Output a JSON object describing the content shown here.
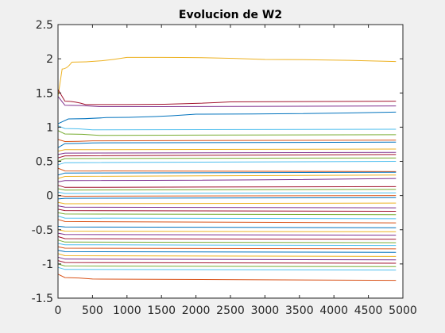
{
  "chart_data": {
    "type": "line",
    "title": "Evolucion de W2",
    "xlabel": "",
    "ylabel": "",
    "xlim": [
      0,
      5000
    ],
    "ylim": [
      -1.5,
      2.5
    ],
    "x_ticks": [
      0,
      500,
      1000,
      1500,
      2000,
      2500,
      3000,
      3500,
      4000,
      4500,
      5000
    ],
    "y_ticks": [
      -1.5,
      -1,
      -0.5,
      0,
      0.5,
      1,
      1.5,
      2,
      2.5
    ],
    "grid": false,
    "legend": "none",
    "x_end": 4900,
    "series": [
      {
        "color": "#EDB120",
        "start": 1.45,
        "values": [
          [
            0,
            1.45
          ],
          [
            60,
            1.85
          ],
          [
            200,
            1.95
          ],
          [
            1000,
            2.02
          ],
          [
            1500,
            2.02
          ],
          [
            3000,
            1.99
          ],
          [
            4900,
            1.96
          ]
        ]
      },
      {
        "color": "#A2142F",
        "start": 1.55,
        "values": [
          [
            0,
            1.55
          ],
          [
            100,
            1.38
          ],
          [
            400,
            1.33
          ],
          [
            1000,
            1.33
          ],
          [
            2500,
            1.37
          ],
          [
            4900,
            1.38
          ]
        ]
      },
      {
        "color": "#7E2F8E",
        "start": 1.45,
        "values": [
          [
            0,
            1.45
          ],
          [
            100,
            1.32
          ],
          [
            600,
            1.3
          ],
          [
            1500,
            1.3
          ],
          [
            4900,
            1.31
          ]
        ]
      },
      {
        "color": "#0072BD",
        "start": 1.05,
        "values": [
          [
            0,
            1.05
          ],
          [
            150,
            1.12
          ],
          [
            700,
            1.14
          ],
          [
            2000,
            1.19
          ],
          [
            4900,
            1.22
          ]
        ]
      },
      {
        "color": "#4DBEEE",
        "start": 1.02,
        "values": [
          [
            0,
            1.02
          ],
          [
            100,
            0.98
          ],
          [
            500,
            0.96
          ],
          [
            4900,
            0.97
          ]
        ]
      },
      {
        "color": "#77AC30",
        "start": 0.95,
        "values": [
          [
            0,
            0.95
          ],
          [
            100,
            0.9
          ],
          [
            600,
            0.88
          ],
          [
            4900,
            0.89
          ]
        ]
      },
      {
        "color": "#D95319",
        "start": 0.82,
        "values": [
          [
            0,
            0.82
          ],
          [
            100,
            0.79
          ],
          [
            500,
            0.8
          ],
          [
            4900,
            0.81
          ]
        ]
      },
      {
        "color": "#0072BD",
        "start": 0.7,
        "values": [
          [
            0,
            0.7
          ],
          [
            100,
            0.76
          ],
          [
            500,
            0.77
          ],
          [
            4900,
            0.78
          ]
        ]
      },
      {
        "color": "#EDB120",
        "start": 0.65,
        "values": [
          [
            0,
            0.65
          ],
          [
            100,
            0.67
          ],
          [
            4900,
            0.68
          ]
        ]
      },
      {
        "color": "#7E2F8E",
        "start": 0.6,
        "values": [
          [
            0,
            0.6
          ],
          [
            100,
            0.62
          ],
          [
            4900,
            0.63
          ]
        ]
      },
      {
        "color": "#A2142F",
        "start": 0.55,
        "values": [
          [
            0,
            0.55
          ],
          [
            100,
            0.58
          ],
          [
            4900,
            0.6
          ]
        ]
      },
      {
        "color": "#77AC30",
        "start": 0.5,
        "values": [
          [
            0,
            0.5
          ],
          [
            100,
            0.54
          ],
          [
            4900,
            0.55
          ]
        ]
      },
      {
        "color": "#4DBEEE",
        "start": 0.45,
        "values": [
          [
            0,
            0.45
          ],
          [
            100,
            0.48
          ],
          [
            4900,
            0.5
          ]
        ]
      },
      {
        "color": "#D95319",
        "start": 0.4,
        "values": [
          [
            0,
            0.4
          ],
          [
            100,
            0.36
          ],
          [
            4900,
            0.35
          ]
        ]
      },
      {
        "color": "#0072BD",
        "start": 0.3,
        "values": [
          [
            0,
            0.3
          ],
          [
            100,
            0.33
          ],
          [
            4900,
            0.34
          ]
        ]
      },
      {
        "color": "#EDB120",
        "start": 0.25,
        "values": [
          [
            0,
            0.25
          ],
          [
            100,
            0.28
          ],
          [
            4900,
            0.3
          ]
        ]
      },
      {
        "color": "#7E2F8E",
        "start": 0.2,
        "values": [
          [
            0,
            0.2
          ],
          [
            100,
            0.22
          ],
          [
            4900,
            0.25
          ]
        ]
      },
      {
        "color": "#A2142F",
        "start": 0.15,
        "values": [
          [
            0,
            0.15
          ],
          [
            100,
            0.12
          ],
          [
            4900,
            0.13
          ]
        ]
      },
      {
        "color": "#77AC30",
        "start": 0.1,
        "values": [
          [
            0,
            0.1
          ],
          [
            100,
            0.08
          ],
          [
            4900,
            0.09
          ]
        ]
      },
      {
        "color": "#4DBEEE",
        "start": 0.05,
        "values": [
          [
            0,
            0.05
          ],
          [
            100,
            0.03
          ],
          [
            4900,
            0.04
          ]
        ]
      },
      {
        "color": "#D95319",
        "start": 0.0,
        "values": [
          [
            0,
            0.0
          ],
          [
            100,
            -0.01
          ],
          [
            4900,
            0.0
          ]
        ]
      },
      {
        "color": "#0072BD",
        "start": -0.05,
        "values": [
          [
            0,
            -0.05
          ],
          [
            100,
            -0.04
          ],
          [
            4900,
            -0.03
          ]
        ]
      },
      {
        "color": "#EDB120",
        "start": -0.1,
        "values": [
          [
            0,
            -0.1
          ],
          [
            100,
            -0.12
          ],
          [
            4900,
            -0.11
          ]
        ]
      },
      {
        "color": "#7E2F8E",
        "start": -0.15,
        "values": [
          [
            0,
            -0.15
          ],
          [
            100,
            -0.17
          ],
          [
            4900,
            -0.18
          ]
        ]
      },
      {
        "color": "#A2142F",
        "start": -0.2,
        "values": [
          [
            0,
            -0.2
          ],
          [
            100,
            -0.22
          ],
          [
            4900,
            -0.23
          ]
        ]
      },
      {
        "color": "#77AC30",
        "start": -0.25,
        "values": [
          [
            0,
            -0.25
          ],
          [
            100,
            -0.27
          ],
          [
            4900,
            -0.28
          ]
        ]
      },
      {
        "color": "#4DBEEE",
        "start": -0.3,
        "values": [
          [
            0,
            -0.3
          ],
          [
            100,
            -0.33
          ],
          [
            4900,
            -0.34
          ]
        ]
      },
      {
        "color": "#D95319",
        "start": -0.35,
        "values": [
          [
            0,
            -0.35
          ],
          [
            100,
            -0.38
          ],
          [
            4900,
            -0.4
          ]
        ]
      },
      {
        "color": "#0072BD",
        "start": -0.45,
        "values": [
          [
            0,
            -0.45
          ],
          [
            100,
            -0.46
          ],
          [
            4900,
            -0.47
          ]
        ]
      },
      {
        "color": "#EDB120",
        "start": -0.5,
        "values": [
          [
            0,
            -0.5
          ],
          [
            100,
            -0.52
          ],
          [
            4900,
            -0.53
          ]
        ]
      },
      {
        "color": "#7E2F8E",
        "start": -0.55,
        "values": [
          [
            0,
            -0.55
          ],
          [
            100,
            -0.57
          ],
          [
            4900,
            -0.58
          ]
        ]
      },
      {
        "color": "#A2142F",
        "start": -0.6,
        "values": [
          [
            0,
            -0.6
          ],
          [
            100,
            -0.63
          ],
          [
            4900,
            -0.64
          ]
        ]
      },
      {
        "color": "#77AC30",
        "start": -0.65,
        "values": [
          [
            0,
            -0.65
          ],
          [
            100,
            -0.68
          ],
          [
            4900,
            -0.69
          ]
        ]
      },
      {
        "color": "#4DBEEE",
        "start": -0.7,
        "values": [
          [
            0,
            -0.7
          ],
          [
            100,
            -0.72
          ],
          [
            4900,
            -0.73
          ]
        ]
      },
      {
        "color": "#D95319",
        "start": -0.75,
        "values": [
          [
            0,
            -0.75
          ],
          [
            100,
            -0.77
          ],
          [
            4900,
            -0.78
          ]
        ]
      },
      {
        "color": "#0072BD",
        "start": -0.8,
        "values": [
          [
            0,
            -0.8
          ],
          [
            100,
            -0.82
          ],
          [
            4900,
            -0.83
          ]
        ]
      },
      {
        "color": "#EDB120",
        "start": -0.85,
        "values": [
          [
            0,
            -0.85
          ],
          [
            100,
            -0.88
          ],
          [
            4900,
            -0.89
          ]
        ]
      },
      {
        "color": "#7E2F8E",
        "start": -0.9,
        "values": [
          [
            0,
            -0.9
          ],
          [
            100,
            -0.93
          ],
          [
            4900,
            -0.94
          ]
        ]
      },
      {
        "color": "#A2142F",
        "start": -0.95,
        "values": [
          [
            0,
            -0.95
          ],
          [
            100,
            -0.98
          ],
          [
            4900,
            -0.99
          ]
        ]
      },
      {
        "color": "#77AC30",
        "start": -1.0,
        "values": [
          [
            0,
            -1.0
          ],
          [
            100,
            -1.03
          ],
          [
            4900,
            -1.04
          ]
        ]
      },
      {
        "color": "#4DBEEE",
        "start": -1.05,
        "values": [
          [
            0,
            -1.05
          ],
          [
            100,
            -1.08
          ],
          [
            4900,
            -1.09
          ]
        ]
      },
      {
        "color": "#D95319",
        "start": -1.15,
        "values": [
          [
            0,
            -1.15
          ],
          [
            100,
            -1.2
          ],
          [
            500,
            -1.22
          ],
          [
            4900,
            -1.24
          ]
        ]
      }
    ]
  }
}
